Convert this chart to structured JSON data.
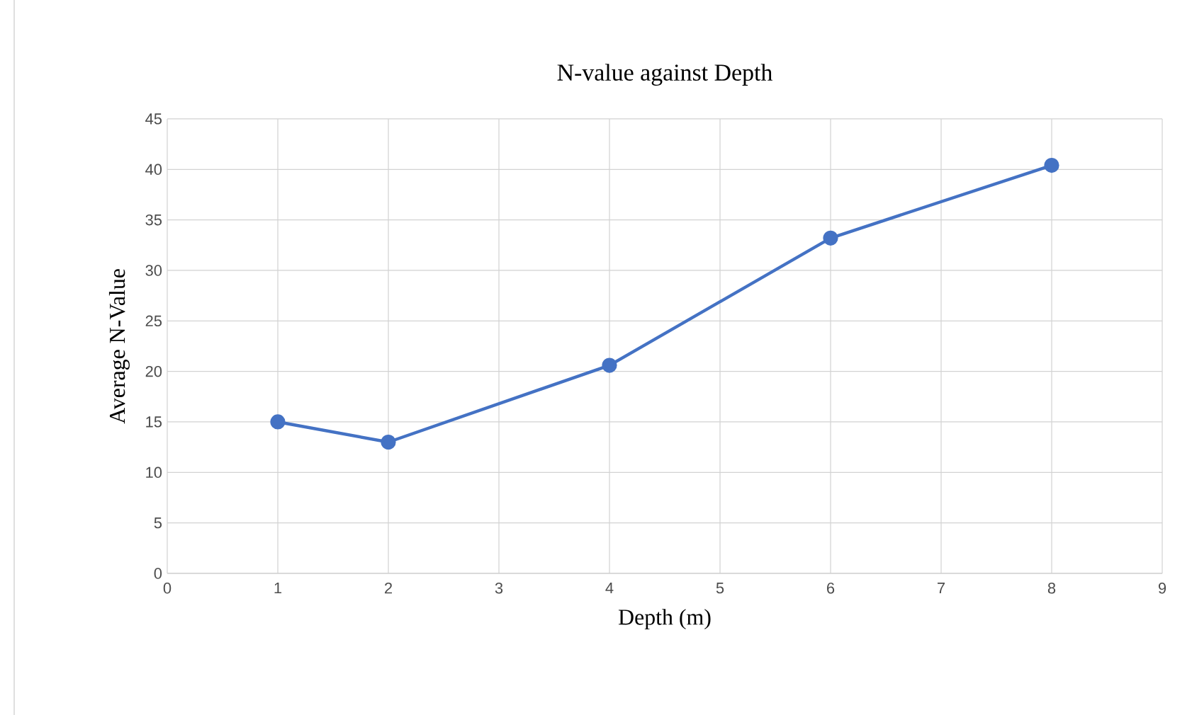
{
  "chart_data": {
    "type": "line",
    "title": "N-value against Depth",
    "xlabel": "Depth (m)",
    "ylabel": "Average N-Value",
    "x": [
      1,
      2,
      4,
      6,
      8
    ],
    "series": [
      {
        "color": "#4472c4",
        "values": [
          15,
          13,
          20.6,
          33.2,
          40.4
        ]
      }
    ],
    "xlim": [
      0,
      9
    ],
    "xticks": [
      0,
      1,
      2,
      3,
      4,
      5,
      6,
      7,
      8,
      9
    ],
    "ylim": [
      0,
      45
    ],
    "yticks": [
      0,
      5,
      10,
      15,
      20,
      25,
      30,
      35,
      40,
      45
    ],
    "grid": true,
    "marker": "circle",
    "line_style": "solid"
  }
}
